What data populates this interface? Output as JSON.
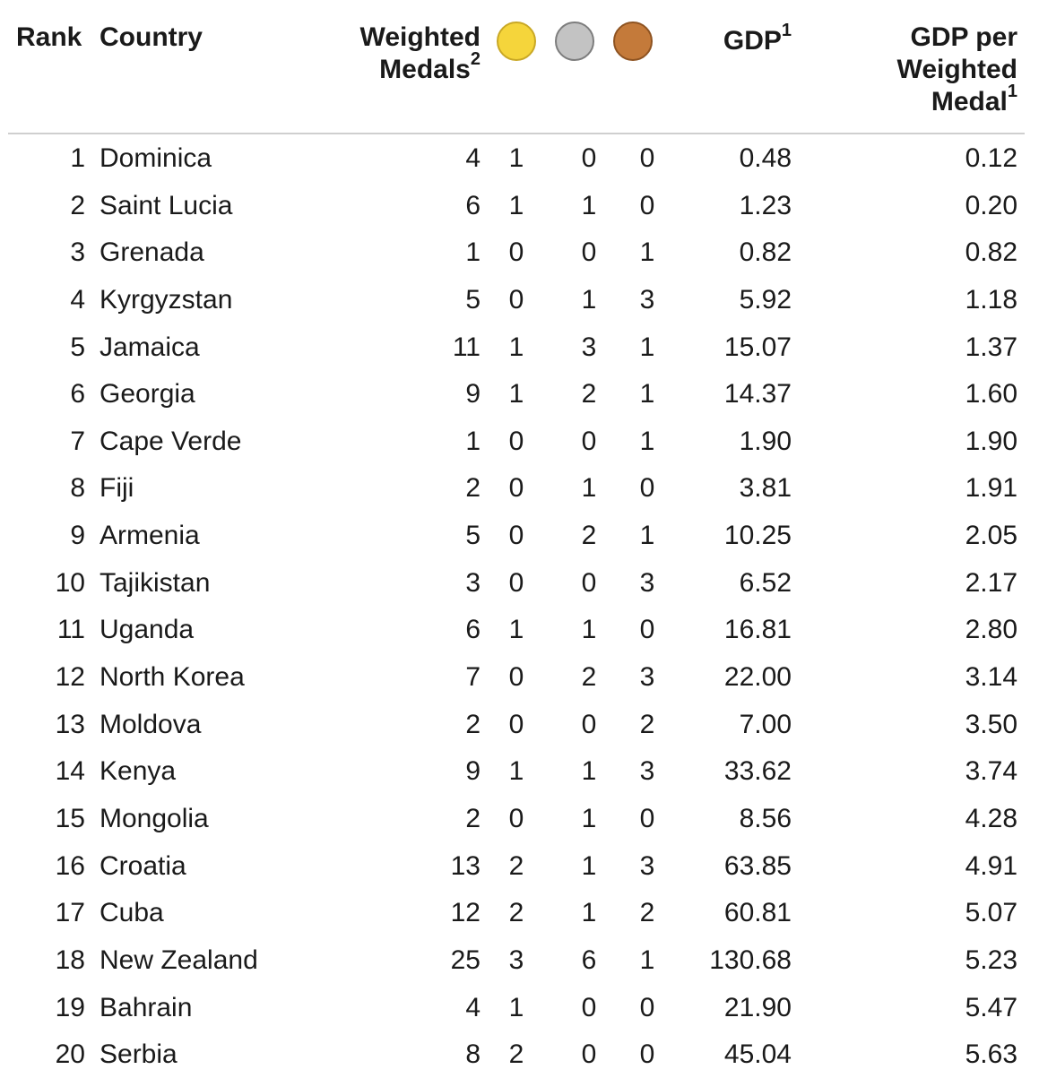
{
  "header": {
    "rank": "Rank",
    "country": "Country",
    "weighted_line1": "Weighted",
    "weighted_line2": "Medals",
    "weighted_sup": "2",
    "gdp": "GDP",
    "gdp_sup": "1",
    "gdp_per_line1": "GDP per",
    "gdp_per_line2": "Weighted",
    "gdp_per_line3": "Medal",
    "gdp_per_sup": "1",
    "medal_icons": {
      "gold": {
        "name": "gold-medal-icon",
        "color": "#f5d53b"
      },
      "silver": {
        "name": "silver-medal-icon",
        "color": "#c3c3c3"
      },
      "bronze": {
        "name": "bronze-medal-icon",
        "color": "#c47a3a"
      }
    }
  },
  "rows": [
    {
      "rank": "1",
      "country": "Dominica",
      "weighted": "4",
      "gold": "1",
      "silver": "0",
      "bronze": "0",
      "gdp": "0.48",
      "gdp_per": "0.12"
    },
    {
      "rank": "2",
      "country": "Saint Lucia",
      "weighted": "6",
      "gold": "1",
      "silver": "1",
      "bronze": "0",
      "gdp": "1.23",
      "gdp_per": "0.20"
    },
    {
      "rank": "3",
      "country": "Grenada",
      "weighted": "1",
      "gold": "0",
      "silver": "0",
      "bronze": "1",
      "gdp": "0.82",
      "gdp_per": "0.82"
    },
    {
      "rank": "4",
      "country": "Kyrgyzstan",
      "weighted": "5",
      "gold": "0",
      "silver": "1",
      "bronze": "3",
      "gdp": "5.92",
      "gdp_per": "1.18"
    },
    {
      "rank": "5",
      "country": "Jamaica",
      "weighted": "11",
      "gold": "1",
      "silver": "3",
      "bronze": "1",
      "gdp": "15.07",
      "gdp_per": "1.37"
    },
    {
      "rank": "6",
      "country": "Georgia",
      "weighted": "9",
      "gold": "1",
      "silver": "2",
      "bronze": "1",
      "gdp": "14.37",
      "gdp_per": "1.60"
    },
    {
      "rank": "7",
      "country": "Cape Verde",
      "weighted": "1",
      "gold": "0",
      "silver": "0",
      "bronze": "1",
      "gdp": "1.90",
      "gdp_per": "1.90"
    },
    {
      "rank": "8",
      "country": "Fiji",
      "weighted": "2",
      "gold": "0",
      "silver": "1",
      "bronze": "0",
      "gdp": "3.81",
      "gdp_per": "1.91"
    },
    {
      "rank": "9",
      "country": "Armenia",
      "weighted": "5",
      "gold": "0",
      "silver": "2",
      "bronze": "1",
      "gdp": "10.25",
      "gdp_per": "2.05"
    },
    {
      "rank": "10",
      "country": "Tajikistan",
      "weighted": "3",
      "gold": "0",
      "silver": "0",
      "bronze": "3",
      "gdp": "6.52",
      "gdp_per": "2.17"
    },
    {
      "rank": "11",
      "country": "Uganda",
      "weighted": "6",
      "gold": "1",
      "silver": "1",
      "bronze": "0",
      "gdp": "16.81",
      "gdp_per": "2.80"
    },
    {
      "rank": "12",
      "country": "North Korea",
      "weighted": "7",
      "gold": "0",
      "silver": "2",
      "bronze": "3",
      "gdp": "22.00",
      "gdp_per": "3.14"
    },
    {
      "rank": "13",
      "country": "Moldova",
      "weighted": "2",
      "gold": "0",
      "silver": "0",
      "bronze": "2",
      "gdp": "7.00",
      "gdp_per": "3.50"
    },
    {
      "rank": "14",
      "country": "Kenya",
      "weighted": "9",
      "gold": "1",
      "silver": "1",
      "bronze": "3",
      "gdp": "33.62",
      "gdp_per": "3.74"
    },
    {
      "rank": "15",
      "country": "Mongolia",
      "weighted": "2",
      "gold": "0",
      "silver": "1",
      "bronze": "0",
      "gdp": "8.56",
      "gdp_per": "4.28"
    },
    {
      "rank": "16",
      "country": "Croatia",
      "weighted": "13",
      "gold": "2",
      "silver": "1",
      "bronze": "3",
      "gdp": "63.85",
      "gdp_per": "4.91"
    },
    {
      "rank": "17",
      "country": "Cuba",
      "weighted": "12",
      "gold": "2",
      "silver": "1",
      "bronze": "2",
      "gdp": "60.81",
      "gdp_per": "5.07"
    },
    {
      "rank": "18",
      "country": "New Zealand",
      "weighted": "25",
      "gold": "3",
      "silver": "6",
      "bronze": "1",
      "gdp": "130.68",
      "gdp_per": "5.23"
    },
    {
      "rank": "19",
      "country": "Bahrain",
      "weighted": "4",
      "gold": "1",
      "silver": "0",
      "bronze": "0",
      "gdp": "21.90",
      "gdp_per": "5.47"
    },
    {
      "rank": "20",
      "country": "Serbia",
      "weighted": "8",
      "gold": "2",
      "silver": "0",
      "bronze": "0",
      "gdp": "45.04",
      "gdp_per": "5.63"
    }
  ]
}
